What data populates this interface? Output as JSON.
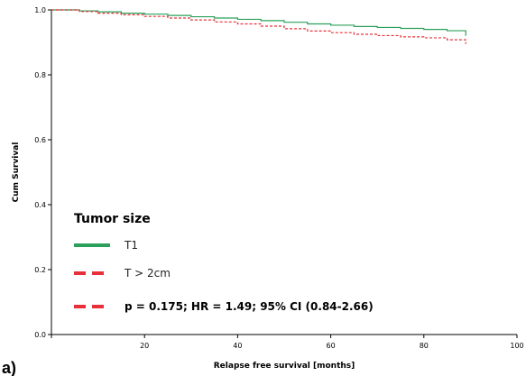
{
  "panel_label": "a)",
  "chart_data": {
    "type": "line",
    "title": "",
    "xlabel": "Relapse free survival [months]",
    "ylabel": "Cum Survival",
    "xlim": [
      0,
      100
    ],
    "ylim": [
      0.0,
      1.0
    ],
    "x_ticks": [
      0,
      20,
      40,
      60,
      80,
      100
    ],
    "x_tick_labels": [
      "",
      "20",
      "40",
      "60",
      "80",
      "100"
    ],
    "y_ticks": [
      0.0,
      0.2,
      0.4,
      0.6,
      0.8,
      1.0
    ],
    "y_tick_labels": [
      "0.0",
      "0.2",
      "0.4",
      "0.6",
      "0.8",
      "1.0"
    ],
    "grid": false,
    "legend_position": "bottom-left",
    "legend_title": "Tumor size",
    "annotation": "p = 0.175; HR = 1.49; 95% CI (0.84-2.66)",
    "series": [
      {
        "name": "T1",
        "color": "#2ca05a",
        "style": "solid",
        "step": true,
        "x": [
          0,
          6,
          10,
          15,
          20,
          25,
          30,
          35,
          40,
          45,
          50,
          55,
          60,
          65,
          70,
          75,
          80,
          85,
          89
        ],
        "y": [
          1.0,
          0.997,
          0.994,
          0.99,
          0.987,
          0.983,
          0.979,
          0.975,
          0.971,
          0.967,
          0.962,
          0.957,
          0.953,
          0.949,
          0.946,
          0.943,
          0.94,
          0.936,
          0.92
        ]
      },
      {
        "name": "T > 2cm",
        "color": "#e8303a",
        "style": "dashed",
        "step": true,
        "x": [
          0,
          6,
          10,
          15,
          20,
          25,
          30,
          35,
          40,
          45,
          50,
          55,
          60,
          65,
          70,
          75,
          80,
          85,
          89
        ],
        "y": [
          1.0,
          0.995,
          0.99,
          0.985,
          0.98,
          0.975,
          0.969,
          0.963,
          0.957,
          0.95,
          0.942,
          0.935,
          0.93,
          0.925,
          0.921,
          0.917,
          0.914,
          0.908,
          0.895
        ]
      }
    ]
  }
}
